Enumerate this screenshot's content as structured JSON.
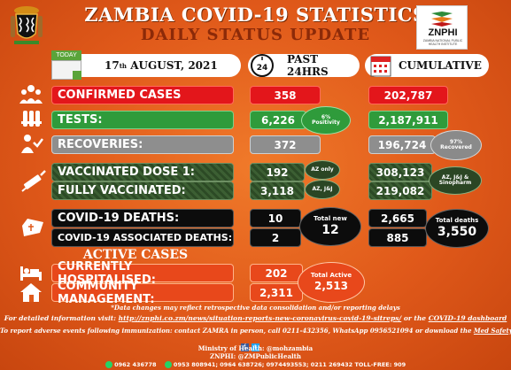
{
  "header": {
    "title": "ZAMBIA COVID-19 STATISTICS",
    "subtitle": "DAILY STATUS UPDATE",
    "logo_name": "ZNPHI",
    "logo_tagline": "ZAMBIA NATIONAL PUBLIC HEALTH INSTITUTE"
  },
  "columns": {
    "today_icon_label": "TODAY",
    "date_day": "17",
    "date_suffix": "th",
    "date_rest": " AUGUST, 2021",
    "past": "PAST 24HRS",
    "past_icon_label": "24",
    "cumulative": "CUMULATIVE"
  },
  "rows": {
    "confirmed": {
      "label": "CONFIRMED CASES",
      "past": "358",
      "cumulative": "202,787"
    },
    "tests": {
      "label": "TESTS:",
      "past": "6,226",
      "positivity_value": "6%",
      "positivity_label": "Positivity",
      "cumulative": "2,187,911"
    },
    "recoveries": {
      "label": "RECOVERIES:",
      "past": "372",
      "cumulative": "196,724",
      "recovered_value": "97%",
      "recovered_label": "Recovered"
    },
    "dose1": {
      "label": "VACCINATED DOSE 1:",
      "past": "192",
      "note": "AZ only",
      "cumulative": "308,123"
    },
    "fully": {
      "label": "FULLY VACCINATED:",
      "past": "3,118",
      "note": "AZ, J&J",
      "cumulative": "219,082"
    },
    "vaccine_note": "AZ, J&J & Sinopharm",
    "deaths": {
      "label": "COVID-19 DEATHS:",
      "past": "10",
      "cumulative": "2,665"
    },
    "assoc_deaths": {
      "label": "COVID-19 ASSOCIATED DEATHS:",
      "past": "2",
      "cumulative": "885"
    },
    "total_new": {
      "label": "Total new",
      "value": "12"
    },
    "total_deaths": {
      "label": "Total deaths",
      "value": "3,550"
    }
  },
  "active": {
    "title": "ACTIVE CASES",
    "hospitalised": {
      "label": "CURRENTLY HOSPITALISED:",
      "value": "202"
    },
    "community": {
      "label": "COMMUNITY MANAGEMENT:",
      "value": "2,311"
    },
    "total": {
      "label": "Total Active",
      "value": "2,513"
    }
  },
  "footer": {
    "note": "*Data changes may reflect retrospective data consolidation and/or reporting delays",
    "info_prefix": "For detailed information visit: ",
    "info_url": "http://znphi.co.zm/news/situation-reports-new-coronavirus-covid-19-sitreps/",
    "info_mid": " or the ",
    "info_dashboard": "COVID-19 dashboard",
    "adverse_text": "To report adverse events following immunization: contact ZAMRA in person, call 0211-432356, WhatsApp 0956521094 or download the ",
    "adverse_link": "Med Safety app",
    "ministry": "Ministry of Health: @mohzambia",
    "znphi_handle": "ZNPHI: @ZMPublicHealth",
    "phone1": "0962 436778",
    "phone2": "0953 808941; 0964 638726; 0974493553; 0211 269432 TOLL-FREE: 909"
  },
  "colors": {
    "background": "#e0591a",
    "confirmed": "#e3161b",
    "tests": "#2f9b3b",
    "recoveries": "#8e8e8e",
    "vaccinated": "#2c4a25",
    "deaths": "#0c0c0c",
    "active": "#e8481b",
    "subtitle": "#8c2a08"
  },
  "icons": [
    "coat-of-arms-icon",
    "znphi-logo-icon",
    "today-calendar-icon",
    "24hr-clock-icon",
    "calendar-icon",
    "virus-crowd-icon",
    "test-tubes-icon",
    "recovery-icon",
    "syringe-icon",
    "coffin-icon",
    "hospital-bed-icon",
    "home-icon",
    "facebook-icon",
    "twitter-icon",
    "whatsapp-icon",
    "phone-icon"
  ]
}
